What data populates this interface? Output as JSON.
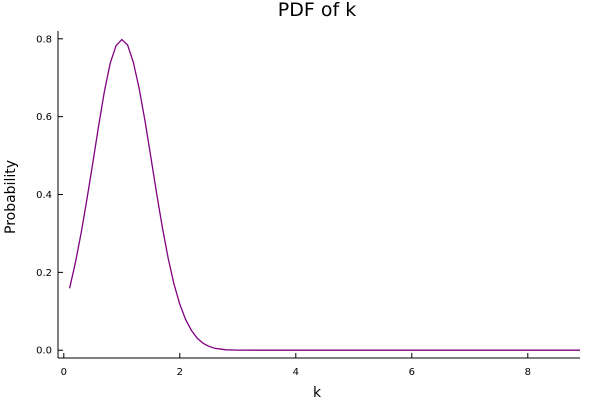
{
  "chart_data": {
    "type": "line",
    "title": "PDF of k",
    "xlabel": "k",
    "ylabel": "Probability",
    "xlim": [
      -0.1,
      8.9
    ],
    "ylim": [
      -0.02,
      0.82
    ],
    "grid": false,
    "legend": "none",
    "xticks": [
      0,
      2,
      4,
      6,
      8
    ],
    "yticks": [
      0.0,
      0.2,
      0.4,
      0.6,
      0.8
    ],
    "xtick_labels": [
      "0",
      "2",
      "4",
      "6",
      "8"
    ],
    "ytick_labels": [
      "0.0",
      "0.2",
      "0.4",
      "0.6",
      "0.8"
    ],
    "series": [
      {
        "color": "#800080",
        "x": [
          0.1,
          0.2,
          0.3,
          0.4,
          0.5,
          0.6,
          0.7,
          0.8,
          0.9,
          1.0,
          1.1,
          1.2,
          1.3,
          1.4,
          1.5,
          1.6,
          1.7,
          1.8,
          1.9,
          2.0,
          2.1,
          2.2,
          2.3,
          2.4,
          2.5,
          2.6,
          2.7,
          2.8,
          3.0,
          3.5,
          4.0,
          5.0,
          6.0,
          7.0,
          8.0,
          8.9
        ],
        "y": [
          0.159,
          0.225,
          0.302,
          0.389,
          0.481,
          0.576,
          0.665,
          0.737,
          0.782,
          0.798,
          0.784,
          0.739,
          0.672,
          0.589,
          0.497,
          0.403,
          0.315,
          0.236,
          0.17,
          0.118,
          0.079,
          0.051,
          0.031,
          0.018,
          0.01,
          0.005,
          0.003,
          0.001,
          0.0002,
          0.0,
          0.0,
          0.0,
          0.0,
          0.0,
          0.0,
          0.0
        ]
      }
    ]
  }
}
